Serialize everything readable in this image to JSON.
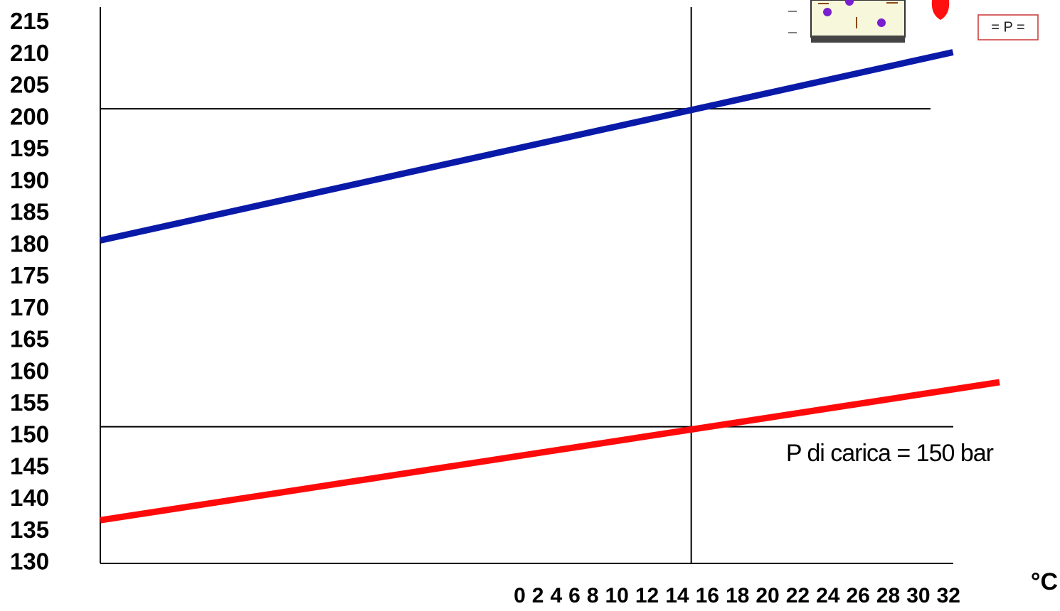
{
  "chart_data": {
    "type": "line",
    "annotation": "P di carica = 150 bar",
    "x_unit": "°C",
    "badge": "= P =",
    "xlim": [
      -20.8,
      35.2
    ],
    "ylim": [
      130,
      217.5
    ],
    "xticks": [
      0,
      2,
      4,
      6,
      8,
      10,
      12,
      14,
      16,
      18,
      20,
      22,
      24,
      26,
      28,
      30,
      32
    ],
    "yticks": [
      130,
      135,
      140,
      145,
      150,
      155,
      160,
      165,
      170,
      175,
      180,
      185,
      190,
      195,
      200,
      205,
      210,
      215
    ],
    "hlines": [
      201.5,
      151.5
    ],
    "vlines": [
      16
    ],
    "series": [
      {
        "color": "#0a1aa8",
        "x": [
          -20.8,
          32.3
        ],
        "values": [
          180.8,
          210.4
        ]
      },
      {
        "color": "#ff0a0a",
        "x": [
          -20.8,
          35.2
        ],
        "values": [
          136.8,
          158.5
        ]
      }
    ]
  }
}
